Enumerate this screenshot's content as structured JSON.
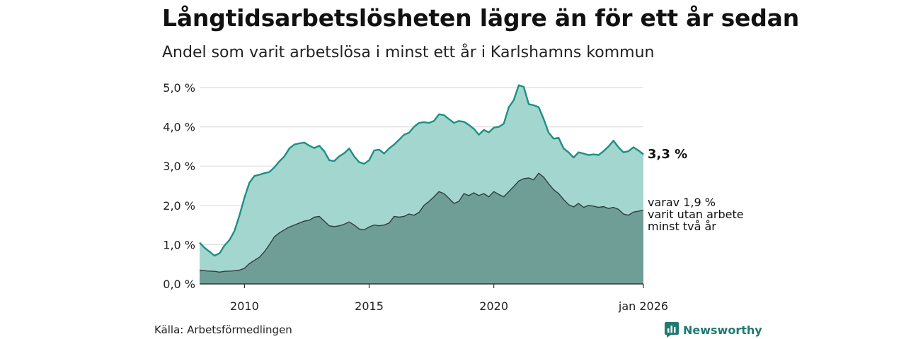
{
  "title": "Långtidsarbetslösheten lägre än för ett år sedan",
  "subtitle": "Andel som varit arbetslösa i minst ett år i Karlshamns kommun",
  "source": "Källa: Arbetsförmedlingen",
  "brand": "Newsworthy",
  "colors": {
    "main_fill": "#a3d6cf",
    "main_line": "#1e8f83",
    "sub_fill": "#6f9e97",
    "sub_line": "#2f3e3b",
    "grid": "#dddddd",
    "brand": "#1f7a72"
  },
  "chart_data": {
    "type": "area",
    "title": "Långtidsarbetslösheten lägre än för ett år sedan",
    "subtitle": "Andel som varit arbetslösa i minst ett år i Karlshamns kommun",
    "xlabel": "",
    "ylabel": "",
    "x_range": [
      2008.2,
      2026.0
    ],
    "ylim": [
      0,
      5.0
    ],
    "y_ticks": [
      {
        "value": 0,
        "label": "0,0 %"
      },
      {
        "value": 1,
        "label": "1,0 %"
      },
      {
        "value": 2,
        "label": "2,0 %"
      },
      {
        "value": 3,
        "label": "3,0 %"
      },
      {
        "value": 4,
        "label": "4,0 %"
      },
      {
        "value": 5,
        "label": "5,0 %"
      }
    ],
    "x_ticks": [
      {
        "value": 2010,
        "label": "2010"
      },
      {
        "value": 2015,
        "label": "2015"
      },
      {
        "value": 2020,
        "label": "2020"
      },
      {
        "value": 2026,
        "label": "jan 2026"
      }
    ],
    "grid": true,
    "series": [
      {
        "name": "minst ett år",
        "end_label": "3,3 %",
        "points": [
          [
            2008.2,
            1.05
          ],
          [
            2008.4,
            0.92
          ],
          [
            2008.6,
            0.82
          ],
          [
            2008.8,
            0.72
          ],
          [
            2009.0,
            0.78
          ],
          [
            2009.2,
            0.98
          ],
          [
            2009.4,
            1.12
          ],
          [
            2009.6,
            1.35
          ],
          [
            2009.8,
            1.75
          ],
          [
            2010.0,
            2.2
          ],
          [
            2010.2,
            2.58
          ],
          [
            2010.4,
            2.75
          ],
          [
            2010.6,
            2.78
          ],
          [
            2010.8,
            2.82
          ],
          [
            2011.0,
            2.85
          ],
          [
            2011.2,
            2.97
          ],
          [
            2011.4,
            3.12
          ],
          [
            2011.6,
            3.25
          ],
          [
            2011.8,
            3.45
          ],
          [
            2012.0,
            3.55
          ],
          [
            2012.2,
            3.58
          ],
          [
            2012.4,
            3.6
          ],
          [
            2012.6,
            3.52
          ],
          [
            2012.8,
            3.46
          ],
          [
            2013.0,
            3.52
          ],
          [
            2013.2,
            3.38
          ],
          [
            2013.4,
            3.15
          ],
          [
            2013.6,
            3.13
          ],
          [
            2013.8,
            3.25
          ],
          [
            2014.0,
            3.33
          ],
          [
            2014.2,
            3.45
          ],
          [
            2014.4,
            3.25
          ],
          [
            2014.6,
            3.1
          ],
          [
            2014.8,
            3.06
          ],
          [
            2015.0,
            3.15
          ],
          [
            2015.2,
            3.4
          ],
          [
            2015.4,
            3.42
          ],
          [
            2015.6,
            3.32
          ],
          [
            2015.8,
            3.45
          ],
          [
            2016.0,
            3.55
          ],
          [
            2016.2,
            3.67
          ],
          [
            2016.4,
            3.8
          ],
          [
            2016.6,
            3.85
          ],
          [
            2016.8,
            4.0
          ],
          [
            2017.0,
            4.1
          ],
          [
            2017.2,
            4.12
          ],
          [
            2017.4,
            4.1
          ],
          [
            2017.6,
            4.15
          ],
          [
            2017.8,
            4.32
          ],
          [
            2018.0,
            4.3
          ],
          [
            2018.2,
            4.2
          ],
          [
            2018.4,
            4.1
          ],
          [
            2018.6,
            4.15
          ],
          [
            2018.8,
            4.13
          ],
          [
            2019.0,
            4.05
          ],
          [
            2019.2,
            3.95
          ],
          [
            2019.4,
            3.8
          ],
          [
            2019.6,
            3.92
          ],
          [
            2019.8,
            3.86
          ],
          [
            2020.0,
            3.98
          ],
          [
            2020.2,
            4.0
          ],
          [
            2020.4,
            4.08
          ],
          [
            2020.6,
            4.5
          ],
          [
            2020.8,
            4.68
          ],
          [
            2021.0,
            5.06
          ],
          [
            2021.2,
            5.02
          ],
          [
            2021.4,
            4.58
          ],
          [
            2021.6,
            4.55
          ],
          [
            2021.8,
            4.5
          ],
          [
            2022.0,
            4.2
          ],
          [
            2022.2,
            3.85
          ],
          [
            2022.4,
            3.7
          ],
          [
            2022.6,
            3.72
          ],
          [
            2022.8,
            3.45
          ],
          [
            2023.0,
            3.35
          ],
          [
            2023.2,
            3.22
          ],
          [
            2023.4,
            3.35
          ],
          [
            2023.6,
            3.32
          ],
          [
            2023.8,
            3.28
          ],
          [
            2024.0,
            3.3
          ],
          [
            2024.2,
            3.28
          ],
          [
            2024.4,
            3.38
          ],
          [
            2024.6,
            3.5
          ],
          [
            2024.8,
            3.65
          ],
          [
            2025.0,
            3.48
          ],
          [
            2025.2,
            3.35
          ],
          [
            2025.4,
            3.38
          ],
          [
            2025.6,
            3.48
          ],
          [
            2025.8,
            3.4
          ],
          [
            2026.0,
            3.3
          ]
        ]
      },
      {
        "name": "varit utan arbete minst två år",
        "end_label_lines": [
          "varav 1,9 %",
          "varit utan arbete",
          "minst två år"
        ],
        "points": [
          [
            2008.2,
            0.35
          ],
          [
            2008.5,
            0.33
          ],
          [
            2008.8,
            0.32
          ],
          [
            2009.0,
            0.3
          ],
          [
            2009.2,
            0.32
          ],
          [
            2009.5,
            0.33
          ],
          [
            2009.8,
            0.35
          ],
          [
            2010.0,
            0.4
          ],
          [
            2010.2,
            0.52
          ],
          [
            2010.4,
            0.6
          ],
          [
            2010.6,
            0.68
          ],
          [
            2010.8,
            0.82
          ],
          [
            2011.0,
            1.0
          ],
          [
            2011.2,
            1.2
          ],
          [
            2011.4,
            1.3
          ],
          [
            2011.6,
            1.38
          ],
          [
            2011.8,
            1.45
          ],
          [
            2012.0,
            1.5
          ],
          [
            2012.2,
            1.55
          ],
          [
            2012.4,
            1.6
          ],
          [
            2012.6,
            1.62
          ],
          [
            2012.8,
            1.7
          ],
          [
            2013.0,
            1.72
          ],
          [
            2013.2,
            1.6
          ],
          [
            2013.4,
            1.48
          ],
          [
            2013.6,
            1.46
          ],
          [
            2013.8,
            1.48
          ],
          [
            2014.0,
            1.52
          ],
          [
            2014.2,
            1.58
          ],
          [
            2014.4,
            1.5
          ],
          [
            2014.6,
            1.4
          ],
          [
            2014.8,
            1.38
          ],
          [
            2015.0,
            1.45
          ],
          [
            2015.2,
            1.5
          ],
          [
            2015.4,
            1.48
          ],
          [
            2015.6,
            1.5
          ],
          [
            2015.8,
            1.55
          ],
          [
            2016.0,
            1.72
          ],
          [
            2016.2,
            1.7
          ],
          [
            2016.4,
            1.72
          ],
          [
            2016.6,
            1.78
          ],
          [
            2016.8,
            1.75
          ],
          [
            2017.0,
            1.82
          ],
          [
            2017.2,
            2.0
          ],
          [
            2017.4,
            2.1
          ],
          [
            2017.6,
            2.22
          ],
          [
            2017.8,
            2.35
          ],
          [
            2018.0,
            2.3
          ],
          [
            2018.2,
            2.18
          ],
          [
            2018.4,
            2.05
          ],
          [
            2018.6,
            2.1
          ],
          [
            2018.8,
            2.3
          ],
          [
            2019.0,
            2.25
          ],
          [
            2019.2,
            2.32
          ],
          [
            2019.4,
            2.25
          ],
          [
            2019.6,
            2.3
          ],
          [
            2019.8,
            2.22
          ],
          [
            2020.0,
            2.35
          ],
          [
            2020.2,
            2.28
          ],
          [
            2020.4,
            2.22
          ],
          [
            2020.6,
            2.35
          ],
          [
            2020.8,
            2.48
          ],
          [
            2021.0,
            2.62
          ],
          [
            2021.2,
            2.68
          ],
          [
            2021.4,
            2.7
          ],
          [
            2021.6,
            2.65
          ],
          [
            2021.8,
            2.82
          ],
          [
            2022.0,
            2.72
          ],
          [
            2022.2,
            2.55
          ],
          [
            2022.4,
            2.4
          ],
          [
            2022.6,
            2.3
          ],
          [
            2022.8,
            2.15
          ],
          [
            2023.0,
            2.02
          ],
          [
            2023.2,
            1.96
          ],
          [
            2023.4,
            2.05
          ],
          [
            2023.6,
            1.95
          ],
          [
            2023.8,
            2.0
          ],
          [
            2024.0,
            1.98
          ],
          [
            2024.2,
            1.95
          ],
          [
            2024.4,
            1.97
          ],
          [
            2024.6,
            1.92
          ],
          [
            2024.8,
            1.95
          ],
          [
            2025.0,
            1.9
          ],
          [
            2025.2,
            1.78
          ],
          [
            2025.4,
            1.75
          ],
          [
            2025.6,
            1.83
          ],
          [
            2025.8,
            1.85
          ],
          [
            2026.0,
            1.88
          ]
        ]
      }
    ]
  }
}
